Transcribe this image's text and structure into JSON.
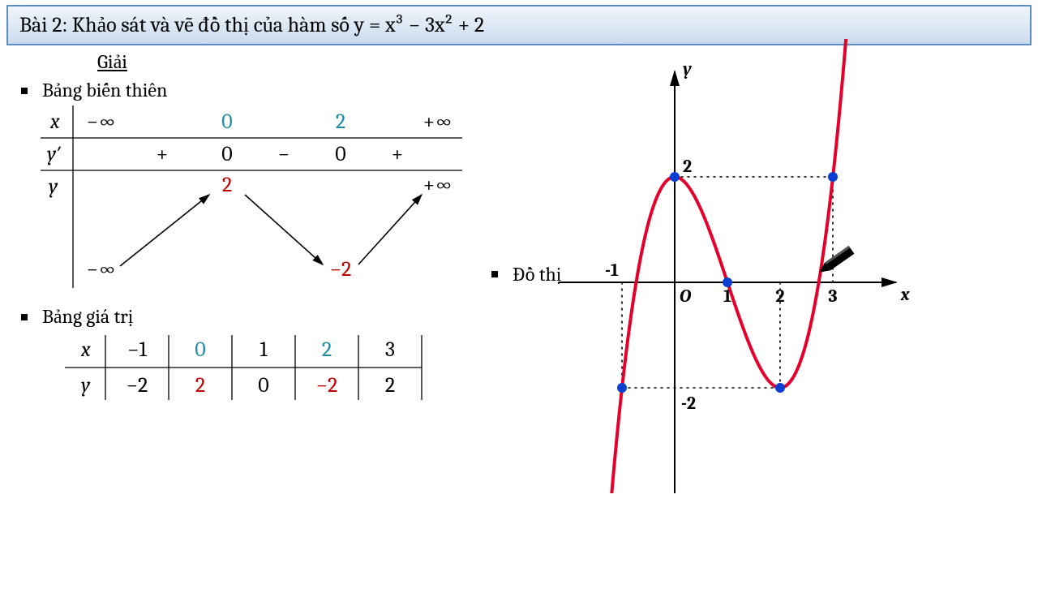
{
  "header": {
    "problem_prefix": "Bài 2: Khảo sát và vẽ đồ thị của hàm số ",
    "equation_html": "y = x³ − 3x² + 2"
  },
  "labels": {
    "solution": "Giải",
    "variation_table": "Bảng biến thiên",
    "value_table": "Bảng giá trị",
    "graph": "Đồ thị"
  },
  "function": {
    "formula": "y = x^3 - 3x^2 + 2",
    "critical_x": [
      0,
      2
    ],
    "critical_y": [
      2,
      -2
    ]
  },
  "variation_table": {
    "x_row": {
      "label": "x",
      "cells": [
        "−∞",
        "0",
        "2",
        "+∞"
      ],
      "highlight_idx": [
        1,
        2
      ]
    },
    "yprime_row": {
      "label": "y′",
      "signs": [
        "+",
        "0",
        "−",
        "0",
        "+"
      ]
    },
    "y_row": {
      "label": "y",
      "start": "−∞",
      "max": "2",
      "min": "−2",
      "end": "+∞",
      "max_color": "#c00000",
      "min_color": "#c00000"
    },
    "colors": {
      "highlight": "#1f8ba3",
      "text": "#000000"
    },
    "font_size": 26
  },
  "value_table": {
    "x": [
      "−1",
      "0",
      "1",
      "2",
      "3"
    ],
    "y": [
      "−2",
      "2",
      "0",
      "−2",
      "2"
    ],
    "x_highlight_idx": [
      1,
      3
    ],
    "y_highlight_idx": [
      1,
      3
    ],
    "x_highlight_color": "#1f8ba3",
    "y_highlight_color": "#c00000",
    "font_size": 26
  },
  "graph": {
    "type": "cubic-curve",
    "curve_color": "#e4002b",
    "curve_width": 4,
    "axis_color": "#000000",
    "point_color": "#0b3fd1",
    "point_radius": 6,
    "dotted_color": "#000000",
    "xlim": [
      -2.2,
      4.2
    ],
    "ylim": [
      -4.5,
      4.0
    ],
    "origin_label": "O",
    "x_axis_label": "x",
    "y_axis_label": "y",
    "tick_labels": {
      "x": [
        -1,
        1,
        2,
        3
      ],
      "y": [
        2,
        -2
      ]
    },
    "dashed_guides": [
      {
        "from": [
          0,
          2
        ],
        "to": [
          3,
          2
        ]
      },
      {
        "from": [
          3,
          2
        ],
        "to": [
          3,
          0
        ]
      },
      {
        "from": [
          -1,
          0
        ],
        "to": [
          -1,
          -2
        ]
      },
      {
        "from": [
          -1,
          -2
        ],
        "to": [
          2,
          -2
        ]
      },
      {
        "from": [
          2,
          -2
        ],
        "to": [
          2,
          0
        ]
      }
    ],
    "marked_points": [
      {
        "x": -1,
        "y": -2
      },
      {
        "x": 0,
        "y": 2
      },
      {
        "x": 1,
        "y": 0
      },
      {
        "x": 2,
        "y": -2
      },
      {
        "x": 3,
        "y": 2
      }
    ],
    "pencil_at": [
      2.9,
      0.3
    ],
    "label_fontsize": 22,
    "label_fontweight": "bold"
  }
}
